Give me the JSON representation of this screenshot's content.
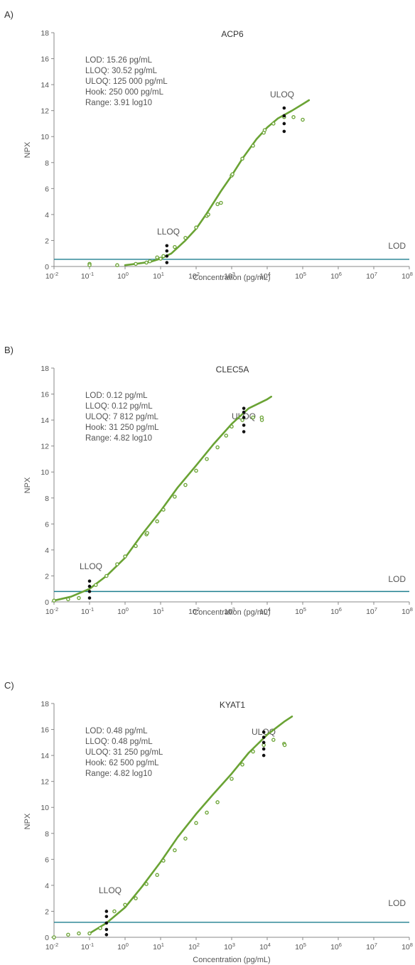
{
  "colors": {
    "curve": "#6aa334",
    "points": "#6aa334",
    "replicates": "#111111",
    "lod_line": "#1f7f8f",
    "axis": "#888888"
  },
  "chart_data": [
    {
      "type": "scatter",
      "panel": "A)",
      "title": "ACP6",
      "xlabel": "Concentration (pg/mL)",
      "ylabel": "NPX",
      "x_scale": "log",
      "xlim": [
        0.01,
        100000000
      ],
      "ylim": [
        0,
        18
      ],
      "yticks": [
        0,
        2,
        4,
        6,
        8,
        10,
        12,
        14,
        16,
        18
      ],
      "xtick_exponents": [
        "-2",
        "-1",
        "0",
        "1",
        "2",
        "3",
        "4",
        "5",
        "6",
        "7",
        "8"
      ],
      "stats": [
        "LOD: 15.26 pg/mL",
        "LLOQ: 30.52 pg/mL",
        "ULOQ: 125 000 pg/mL",
        "Hook: 250 000 pg/mL",
        "Range: 3.91 log10"
      ],
      "lod_value": 0.55,
      "lod_label": "LOD",
      "lloq_label": "LLOQ",
      "uloq_label": "ULOQ",
      "lloq_x": 15,
      "uloq_x": 30000,
      "fit_curve": {
        "x": [
          1,
          2,
          5,
          10,
          20,
          50,
          100,
          200,
          500,
          1000,
          2000,
          5000,
          10000,
          20000,
          50000,
          100000,
          150000
        ],
        "y": [
          0.1,
          0.2,
          0.35,
          0.6,
          1.0,
          2.0,
          2.9,
          4.1,
          5.8,
          7.0,
          8.3,
          9.8,
          10.7,
          11.4,
          12.0,
          12.5,
          12.8
        ]
      },
      "points": {
        "x": [
          0.1,
          0.1,
          0.6,
          2,
          4,
          5,
          8,
          10,
          12,
          25,
          50,
          100,
          200,
          220,
          400,
          500,
          1000,
          1050,
          2000,
          4000,
          8000,
          8500,
          15000,
          30000,
          55000,
          100000
        ],
        "y": [
          0.2,
          0.1,
          0.1,
          0.2,
          0.3,
          0.4,
          0.7,
          0.6,
          0.8,
          1.5,
          2.2,
          3.0,
          3.9,
          4.0,
          4.8,
          4.9,
          7.0,
          7.1,
          8.3,
          9.3,
          10.3,
          10.5,
          11.0,
          11.5,
          11.5,
          11.3
        ]
      },
      "replicates": [
        {
          "x": 15,
          "y": [
            0.3,
            0.8,
            1.2,
            1.6
          ]
        },
        {
          "x": 30000,
          "y": [
            10.4,
            11.0,
            11.6,
            12.2
          ]
        }
      ]
    },
    {
      "type": "scatter",
      "panel": "B)",
      "title": "CLEC5A",
      "xlabel": "Concentration (pg/mL)",
      "ylabel": "NPX",
      "x_scale": "log",
      "xlim": [
        0.01,
        100000000
      ],
      "ylim": [
        0,
        18
      ],
      "yticks": [
        0,
        2,
        4,
        6,
        8,
        10,
        12,
        14,
        16,
        18
      ],
      "xtick_exponents": [
        "-2",
        "-1",
        "0",
        "1",
        "2",
        "3",
        "4",
        "5",
        "6",
        "7",
        "8"
      ],
      "stats": [
        "LOD: 0.12 pg/mL",
        "LLOQ: 0.12 pg/mL",
        "ULOQ: 7 812 pg/mL",
        "Hook: 31 250 pg/mL",
        "Range: 4.82 log10"
      ],
      "lod_value": 0.8,
      "lod_label": "LOD",
      "lloq_label": "LLOQ",
      "uloq_label": "ULOQ",
      "lloq_x": 0.1,
      "uloq_x": 2200,
      "fit_curve": {
        "x": [
          0.01,
          0.03,
          0.1,
          0.3,
          1,
          3,
          10,
          30,
          100,
          300,
          1000,
          3000,
          10000,
          13000
        ],
        "y": [
          0.1,
          0.4,
          1.0,
          2.0,
          3.4,
          5.2,
          7.0,
          8.8,
          10.5,
          12.1,
          13.7,
          14.9,
          15.6,
          15.8
        ]
      },
      "points": {
        "x": [
          0.01,
          0.025,
          0.05,
          0.15,
          0.3,
          0.6,
          1,
          2,
          4,
          4.2,
          8,
          12,
          25,
          50,
          100,
          200,
          400,
          700,
          1000,
          2000,
          4000,
          7000,
          7100
        ],
        "y": [
          0.1,
          0.2,
          0.3,
          1.3,
          2.0,
          2.9,
          3.5,
          4.3,
          5.2,
          5.3,
          6.2,
          7.1,
          8.1,
          9.0,
          10.1,
          11.0,
          11.9,
          12.8,
          13.5,
          14.0,
          14.2,
          14.2,
          14.0
        ]
      },
      "replicates": [
        {
          "x": 0.1,
          "y": [
            0.3,
            0.8,
            1.2,
            1.6
          ]
        },
        {
          "x": 2200,
          "y": [
            13.1,
            13.6,
            14.2,
            14.6,
            14.9
          ]
        }
      ]
    },
    {
      "type": "scatter",
      "panel": "C)",
      "title": "KYAT1",
      "xlabel": "Concentration (pg/mL)",
      "ylabel": "NPX",
      "x_scale": "log",
      "xlim": [
        0.01,
        100000000
      ],
      "ylim": [
        0,
        18
      ],
      "yticks": [
        0,
        2,
        4,
        6,
        8,
        10,
        12,
        14,
        16,
        18
      ],
      "xtick_exponents": [
        "-2",
        "-1",
        "0",
        "1",
        "2",
        "3",
        "4",
        "5",
        "6",
        "7",
        "8"
      ],
      "stats": [
        "LOD: 0.48 pg/mL",
        "LLOQ: 0.48 pg/mL",
        "ULOQ: 31 250 pg/mL",
        "Hook: 62 500 pg/mL",
        "Range: 4.82 log10"
      ],
      "lod_value": 1.15,
      "lod_label": "LOD",
      "lloq_label": "LLOQ",
      "uloq_label": "ULOQ",
      "lloq_x": 0.3,
      "uloq_x": 8000,
      "fit_curve": {
        "x": [
          0.1,
          0.3,
          1,
          3,
          10,
          30,
          100,
          300,
          1000,
          3000,
          10000,
          30000,
          50000
        ],
        "y": [
          0.3,
          1.1,
          2.3,
          3.9,
          5.8,
          7.7,
          9.5,
          11.0,
          12.6,
          14.2,
          15.6,
          16.6,
          17.0
        ]
      },
      "points": {
        "x": [
          0.01,
          0.025,
          0.05,
          0.1,
          0.2,
          0.5,
          1,
          2,
          4,
          8,
          12,
          25,
          50,
          100,
          200,
          400,
          1000,
          2000,
          4000,
          8000,
          15000,
          30000,
          31000
        ],
        "y": [
          0.0,
          0.2,
          0.3,
          0.3,
          0.7,
          2.0,
          2.5,
          3.0,
          4.1,
          4.8,
          5.9,
          6.7,
          7.6,
          8.8,
          9.6,
          10.4,
          12.2,
          13.3,
          14.3,
          14.8,
          15.2,
          14.9,
          14.8
        ]
      },
      "replicates": [
        {
          "x": 0.3,
          "y": [
            0.2,
            0.6,
            1.1,
            1.6,
            2.0
          ]
        },
        {
          "x": 8000,
          "y": [
            14.0,
            14.5,
            15.0,
            15.4,
            15.8
          ]
        }
      ]
    }
  ]
}
